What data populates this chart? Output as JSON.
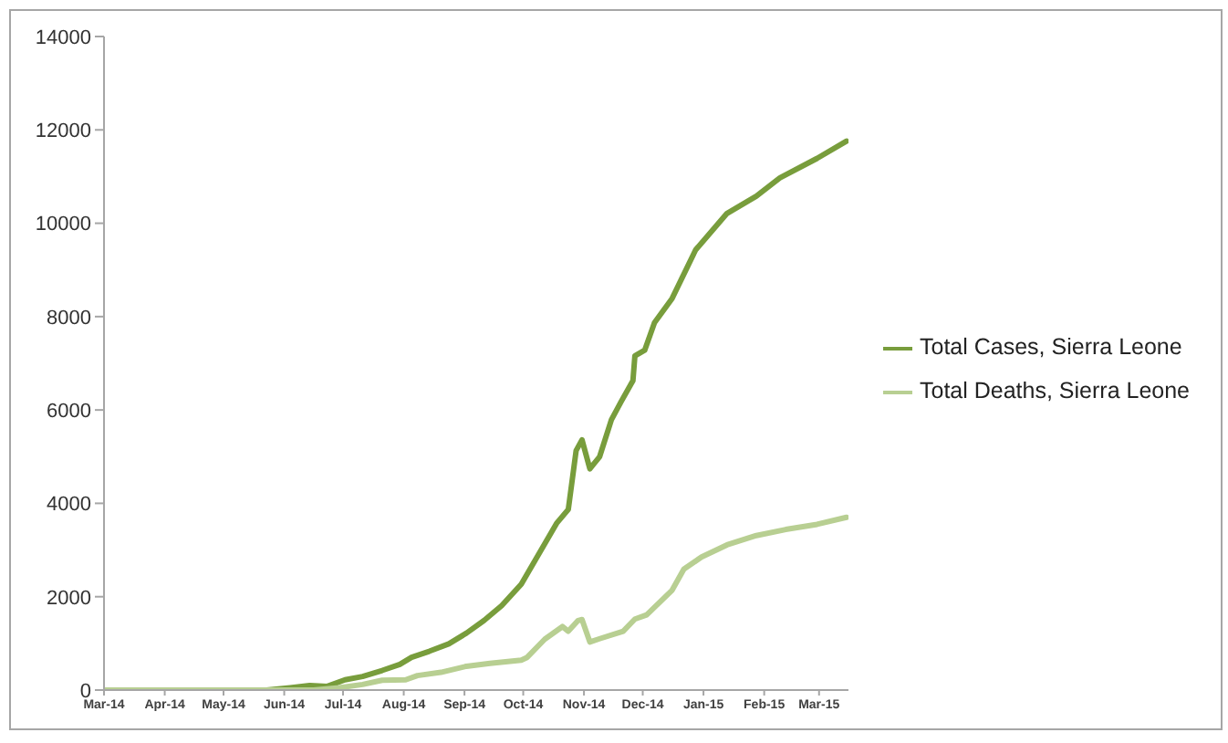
{
  "chart_data": {
    "type": "line",
    "xlim": [
      "2014-03-01",
      "2015-03-16"
    ],
    "xticks": [
      {
        "value": "2014-03-01",
        "label": "Mar-14"
      },
      {
        "value": "2014-04-01",
        "label": "Apr-14"
      },
      {
        "value": "2014-05-01",
        "label": "May-14"
      },
      {
        "value": "2014-06-01",
        "label": "Jun-14"
      },
      {
        "value": "2014-07-01",
        "label": "Jul-14"
      },
      {
        "value": "2014-08-01",
        "label": "Aug-14"
      },
      {
        "value": "2014-09-01",
        "label": "Sep-14"
      },
      {
        "value": "2014-10-01",
        "label": "Oct-14"
      },
      {
        "value": "2014-11-01",
        "label": "Nov-14"
      },
      {
        "value": "2014-12-01",
        "label": "Dec-14"
      },
      {
        "value": "2015-01-01",
        "label": "Jan-15"
      },
      {
        "value": "2015-02-01",
        "label": "Feb-15"
      },
      {
        "value": "2015-03-01",
        "label": "Mar-15"
      }
    ],
    "ylim": [
      0,
      14000
    ],
    "yticks": [
      0,
      2000,
      4000,
      6000,
      8000,
      10000,
      12000,
      14000
    ],
    "legend": "right",
    "marker": "none",
    "line_style": "solid",
    "series": [
      {
        "name": "Total Cases, Sierra Leone",
        "color": "#789d3c",
        "x": [
          "2014-03-01",
          "2014-05-23",
          "2014-06-04",
          "2014-06-14",
          "2014-06-23",
          "2014-07-02",
          "2014-07-11",
          "2014-07-21",
          "2014-07-30",
          "2014-08-05",
          "2014-08-14",
          "2014-08-24",
          "2014-09-02",
          "2014-09-11",
          "2014-09-20",
          "2014-09-30",
          "2014-10-09",
          "2014-10-18",
          "2014-10-24",
          "2014-10-28",
          "2014-10-31",
          "2014-11-04",
          "2014-11-09",
          "2014-11-15",
          "2014-11-20",
          "2014-11-26",
          "2014-11-27",
          "2014-12-02",
          "2014-12-07",
          "2014-12-16",
          "2014-12-28",
          "2015-01-13",
          "2015-01-28",
          "2015-02-09",
          "2015-02-28",
          "2015-03-15"
        ],
        "values": [
          0,
          0,
          50,
          100,
          80,
          220,
          290,
          420,
          550,
          700,
          830,
          990,
          1220,
          1490,
          1810,
          2270,
          2920,
          3570,
          3870,
          5130,
          5360,
          4740,
          5000,
          5790,
          6180,
          6630,
          7160,
          7280,
          7870,
          8390,
          9430,
          10210,
          10580,
          10970,
          11390,
          11760
        ]
      },
      {
        "name": "Total Deaths, Sierra Leone",
        "color": "#b8cf92",
        "x": [
          "2014-03-01",
          "2014-06-16",
          "2014-06-29",
          "2014-07-11",
          "2014-07-21",
          "2014-08-02",
          "2014-08-08",
          "2014-08-20",
          "2014-09-02",
          "2014-09-14",
          "2014-09-30",
          "2014-10-03",
          "2014-10-12",
          "2014-10-21",
          "2014-10-24",
          "2014-10-29",
          "2014-10-31",
          "2014-11-04",
          "2014-11-09",
          "2014-11-21",
          "2014-11-27",
          "2014-12-03",
          "2014-12-16",
          "2014-12-22",
          "2014-12-31",
          "2015-01-13",
          "2015-01-28",
          "2015-02-12",
          "2015-02-28",
          "2015-03-15"
        ],
        "values": [
          0,
          0,
          50,
          120,
          210,
          220,
          310,
          380,
          510,
          570,
          640,
          700,
          1090,
          1360,
          1260,
          1490,
          1510,
          1030,
          1100,
          1260,
          1520,
          1610,
          2140,
          2590,
          2850,
          3110,
          3310,
          3440,
          3550,
          3700
        ]
      }
    ]
  }
}
